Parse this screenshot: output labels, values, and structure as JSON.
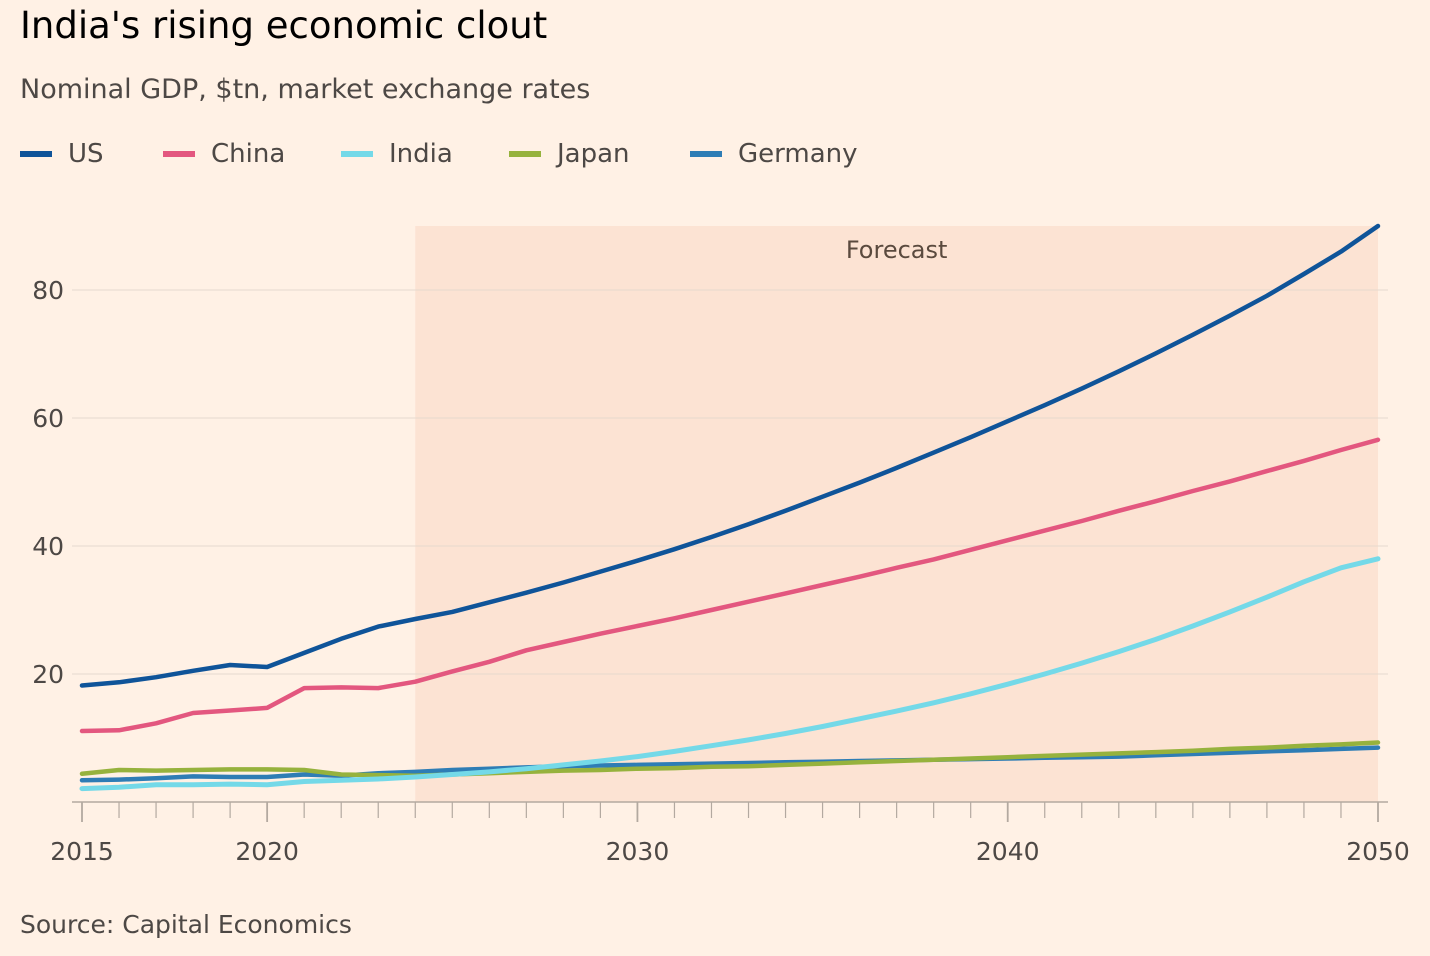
{
  "header": {
    "title": "India's rising economic clout",
    "subtitle": "Nominal GDP, $tn, market exchange rates"
  },
  "footer": {
    "source": "Source: Capital Economics"
  },
  "chart_data": {
    "type": "line",
    "title": "India's rising economic clout",
    "subtitle": "Nominal GDP, $tn, market exchange rates",
    "xlabel": "",
    "ylabel": "",
    "xlim": [
      2015,
      2050
    ],
    "ylim": [
      0,
      90
    ],
    "x_ticks": [
      2015,
      2020,
      2030,
      2040,
      2050
    ],
    "y_ticks": [
      20,
      40,
      60,
      80
    ],
    "grid": "horizontal",
    "legend_position": "top-left",
    "forecast_region": {
      "label": "Forecast",
      "start": 2024,
      "end": 2050,
      "color": "#fce3d3"
    },
    "x": [
      2015,
      2016,
      2017,
      2018,
      2019,
      2020,
      2021,
      2022,
      2023,
      2024,
      2025,
      2026,
      2027,
      2028,
      2029,
      2030,
      2031,
      2032,
      2033,
      2034,
      2035,
      2036,
      2037,
      2038,
      2039,
      2040,
      2041,
      2042,
      2043,
      2044,
      2045,
      2046,
      2047,
      2048,
      2049,
      2050
    ],
    "series": [
      {
        "name": "US",
        "color": "#0f5499",
        "values": [
          18.2,
          18.7,
          19.5,
          20.5,
          21.4,
          21.1,
          23.3,
          25.5,
          27.4,
          28.6,
          29.7,
          31.2,
          32.7,
          34.3,
          36.0,
          37.7,
          39.5,
          41.4,
          43.4,
          45.5,
          47.7,
          49.9,
          52.2,
          54.6,
          57.0,
          59.5,
          62.0,
          64.6,
          67.3,
          70.1,
          73.0,
          76.0,
          79.1,
          82.5,
          86.0,
          90.0
        ]
      },
      {
        "name": "China",
        "color": "#e3577f",
        "values": [
          11.1,
          11.2,
          12.3,
          13.9,
          14.3,
          14.7,
          17.8,
          17.9,
          17.8,
          18.8,
          20.4,
          21.9,
          23.7,
          25.0,
          26.3,
          27.5,
          28.7,
          30.0,
          31.3,
          32.6,
          33.9,
          35.2,
          36.6,
          37.9,
          39.4,
          40.9,
          42.4,
          43.9,
          45.5,
          47.0,
          48.6,
          50.1,
          51.7,
          53.3,
          55.0,
          56.6
        ]
      },
      {
        "name": "India",
        "color": "#74d9e8",
        "values": [
          2.1,
          2.3,
          2.7,
          2.7,
          2.8,
          2.7,
          3.2,
          3.4,
          3.6,
          3.9,
          4.3,
          4.7,
          5.2,
          5.8,
          6.4,
          7.1,
          7.9,
          8.8,
          9.7,
          10.7,
          11.8,
          13.0,
          14.2,
          15.5,
          16.9,
          18.4,
          20.0,
          21.7,
          23.5,
          25.4,
          27.5,
          29.7,
          32.0,
          34.4,
          36.6,
          38.0
        ]
      },
      {
        "name": "Japan",
        "color": "#96b23d",
        "values": [
          4.4,
          5.0,
          4.9,
          5.0,
          5.1,
          5.1,
          5.0,
          4.3,
          4.2,
          4.1,
          4.3,
          4.5,
          4.7,
          4.9,
          5.0,
          5.2,
          5.3,
          5.5,
          5.6,
          5.8,
          6.0,
          6.2,
          6.4,
          6.6,
          6.8,
          7.0,
          7.2,
          7.4,
          7.6,
          7.8,
          8.0,
          8.3,
          8.5,
          8.8,
          9.0,
          9.3
        ]
      },
      {
        "name": "Germany",
        "color": "#2e7db5",
        "values": [
          3.4,
          3.5,
          3.7,
          4.0,
          3.9,
          3.9,
          4.3,
          4.1,
          4.5,
          4.7,
          5.0,
          5.2,
          5.4,
          5.6,
          5.7,
          5.8,
          5.9,
          6.0,
          6.1,
          6.2,
          6.3,
          6.4,
          6.5,
          6.6,
          6.7,
          6.8,
          6.9,
          7.0,
          7.1,
          7.3,
          7.5,
          7.7,
          7.9,
          8.1,
          8.3,
          8.5
        ]
      }
    ]
  }
}
